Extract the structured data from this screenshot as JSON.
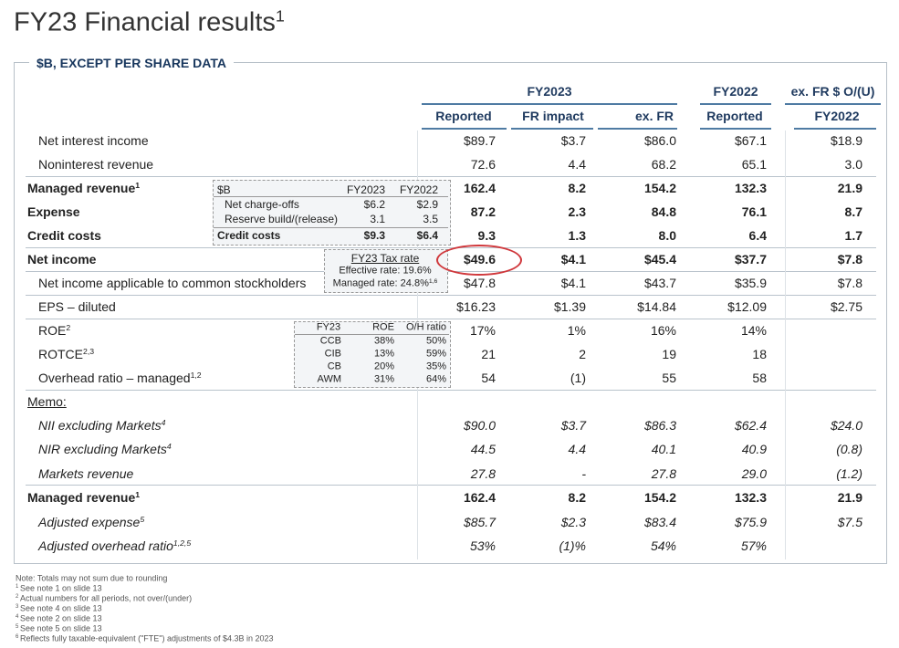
{
  "header": {
    "title": "FY23 Financial results",
    "title_sup": "1",
    "section_label": "$B, EXCEPT PER SHARE DATA"
  },
  "table": {
    "groups": [
      "FY2023",
      "FY2022",
      "ex. FR $ O/(U)"
    ],
    "columns": [
      "Reported",
      "FR impact",
      "ex. FR",
      "Reported",
      "FY2022"
    ],
    "rows": [
      {
        "label": "Net interest income",
        "values": [
          "$89.7",
          "$3.7",
          "$86.0",
          "$67.1",
          "$18.9"
        ]
      },
      {
        "label": "Noninterest revenue",
        "values": [
          "72.6",
          "4.4",
          "68.2",
          "65.1",
          "3.0"
        ]
      },
      {
        "label": "Managed revenue",
        "sup": "1",
        "bold": true,
        "values": [
          "162.4",
          "8.2",
          "154.2",
          "132.3",
          "21.9"
        ]
      },
      {
        "label": "Expense",
        "bold": true,
        "values": [
          "87.2",
          "2.3",
          "84.8",
          "76.1",
          "8.7"
        ]
      },
      {
        "label": "Credit costs",
        "bold": true,
        "values": [
          "9.3",
          "1.3",
          "8.0",
          "6.4",
          "1.7"
        ]
      },
      {
        "label": "Net income",
        "bold": true,
        "values": [
          "$49.6",
          "$4.1",
          "$45.4",
          "$37.7",
          "$7.8"
        ]
      },
      {
        "label": "Net income applicable to common stockholders",
        "values": [
          "$47.8",
          "$4.1",
          "$43.7",
          "$35.9",
          "$7.8"
        ]
      },
      {
        "label": "EPS – diluted",
        "values": [
          "$16.23",
          "$1.39",
          "$14.84",
          "$12.09",
          "$2.75"
        ]
      },
      {
        "label": "ROE",
        "sup": "2",
        "values": [
          "17%",
          "1%",
          "16%",
          "14%"
        ]
      },
      {
        "label": "ROTCE",
        "sup": "2,3",
        "values": [
          "21",
          "2",
          "19",
          "18"
        ]
      },
      {
        "label": "Overhead ratio – managed",
        "sup": "1,2",
        "values": [
          "54",
          "(1)",
          "55",
          "58"
        ]
      }
    ],
    "memo_label": "Memo:",
    "memo_rows": [
      {
        "label": "NII excluding Markets",
        "sup": "4",
        "italic": true,
        "values": [
          "$90.0",
          "$3.7",
          "$86.3",
          "$62.4",
          "$24.0"
        ]
      },
      {
        "label": "NIR excluding Markets",
        "sup": "4",
        "italic": true,
        "values": [
          "44.5",
          "4.4",
          "40.1",
          "40.9",
          "(0.8)"
        ]
      },
      {
        "label": "Markets revenue",
        "italic": true,
        "values": [
          "27.8",
          "-",
          "27.8",
          "29.0",
          "(1.2)"
        ]
      },
      {
        "label": "Managed revenue",
        "sup": "1",
        "bold": true,
        "values": [
          "162.4",
          "8.2",
          "154.2",
          "132.3",
          "21.9"
        ]
      },
      {
        "label": "Adjusted expense",
        "sup": "5",
        "italic": true,
        "values": [
          "$85.7",
          "$2.3",
          "$83.4",
          "$75.9",
          "$7.5"
        ]
      },
      {
        "label": "Adjusted overhead ratio",
        "sup": "1,2,5",
        "italic": true,
        "values": [
          "53%",
          "(1)%",
          "54%",
          "57%"
        ]
      }
    ]
  },
  "credit_inset": {
    "header": [
      "$B",
      "FY2023",
      "FY2022"
    ],
    "rows": [
      [
        "Net charge-offs",
        "$6.2",
        "$2.9"
      ],
      [
        "Reserve build/(release)",
        "3.1",
        "3.5"
      ],
      [
        "Credit costs",
        "$9.3",
        "$6.4"
      ]
    ]
  },
  "tax_inset": {
    "title": "FY23 Tax rate",
    "effective": "Effective rate: 19.6%",
    "managed": "Managed rate: 24.8%",
    "managed_sup": "1,6"
  },
  "lob_inset": {
    "header": [
      "FY23",
      "ROE",
      "O/H ratio"
    ],
    "rows": [
      [
        "CCB",
        "38%",
        "50%"
      ],
      [
        "CIB",
        "13%",
        "59%"
      ],
      [
        "CB",
        "20%",
        "35%"
      ],
      [
        "AWM",
        "31%",
        "64%"
      ]
    ]
  },
  "notes": {
    "intro": "Note: Totals may not sum due to rounding",
    "items": [
      {
        "num": "1",
        "text": "See note 1 on slide 13"
      },
      {
        "num": "2",
        "text": "Actual numbers for all periods, not over/(under)"
      },
      {
        "num": "3",
        "text": "See note 4 on slide 13"
      },
      {
        "num": "4",
        "text": "See note 2 on slide 13"
      },
      {
        "num": "5",
        "text": "See note 5 on slide 13"
      },
      {
        "num": "6",
        "text": "Reflects fully taxable-equivalent (\"FTE\") adjustments of $4.3B in 2023"
      }
    ]
  }
}
